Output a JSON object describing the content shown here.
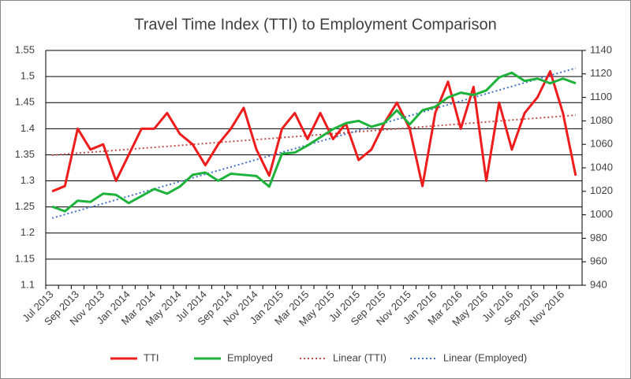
{
  "chart_data": {
    "type": "line",
    "title": "Travel Time Index (TTI) to Employment Comparison",
    "categories": [
      "Jul 2013",
      null,
      "Sep 2013",
      null,
      "Nov 2013",
      null,
      "Jan 2014",
      null,
      "Mar 2014",
      null,
      "May 2014",
      null,
      "Jul 2014",
      null,
      "Sep 2014",
      null,
      "Nov 2014",
      null,
      "Jan 2015",
      null,
      "Mar 2015",
      null,
      "May 2015",
      null,
      "Jul 2015",
      null,
      "Sep 2015",
      null,
      "Nov 2015",
      null,
      "Jan 2016",
      null,
      "Mar 2016",
      null,
      "May 2016",
      null,
      "Jul 2016",
      null,
      "Sep 2016",
      null,
      "Nov 2016",
      null
    ],
    "series": [
      {
        "name": "TTI",
        "color": "#ee1c1c",
        "values": [
          1.28,
          1.29,
          1.4,
          1.36,
          1.37,
          1.3,
          1.35,
          1.4,
          1.4,
          1.43,
          1.39,
          1.37,
          1.33,
          1.37,
          1.4,
          1.44,
          1.36,
          1.31,
          1.4,
          1.43,
          1.38,
          1.43,
          1.38,
          1.41,
          1.34,
          1.36,
          1.41,
          1.45,
          1.4,
          1.29,
          1.43,
          1.49,
          1.4,
          1.48,
          1.3,
          1.45,
          1.36,
          1.43,
          1.46,
          1.51,
          1.43,
          1.31
        ],
        "trendline": {
          "name": "Linear (TTI)",
          "color": "#c0504d"
        }
      },
      {
        "name": "Employed",
        "color": "#1db33b",
        "axis": "y2",
        "values": [
          1007,
          1003,
          1012,
          1011,
          1018,
          1017,
          1010,
          1016,
          1022,
          1018,
          1024,
          1034,
          1036,
          1029,
          1035,
          1034,
          1033,
          1024,
          1052,
          1053,
          1059,
          1066,
          1073,
          1078,
          1080,
          1075,
          1078,
          1089,
          1077,
          1089,
          1092,
          1100,
          1104,
          1102,
          1106,
          1117,
          1121,
          1114,
          1116,
          1112,
          1116,
          1112
        ],
        "trendline": {
          "name": "Linear (Employed)",
          "color": "#4472c4"
        }
      }
    ],
    "ylim": [
      1.1,
      1.55
    ],
    "yticks": [
      {
        "value": 1.1,
        "label": "1.1"
      },
      1.15,
      {
        "value": 1.2,
        "label": "1.2"
      },
      1.25,
      {
        "value": 1.3,
        "label": "1.3"
      },
      1.35,
      {
        "value": 1.4,
        "label": "1.4"
      },
      1.45,
      {
        "value": 1.5,
        "label": "1.5"
      },
      1.55
    ],
    "y2lim": [
      940,
      1140
    ],
    "y2ticks": [
      940,
      960,
      980,
      1000,
      1020,
      1040,
      1060,
      1080,
      1100,
      1120,
      1140
    ],
    "grid": true,
    "legend": "bottom"
  }
}
